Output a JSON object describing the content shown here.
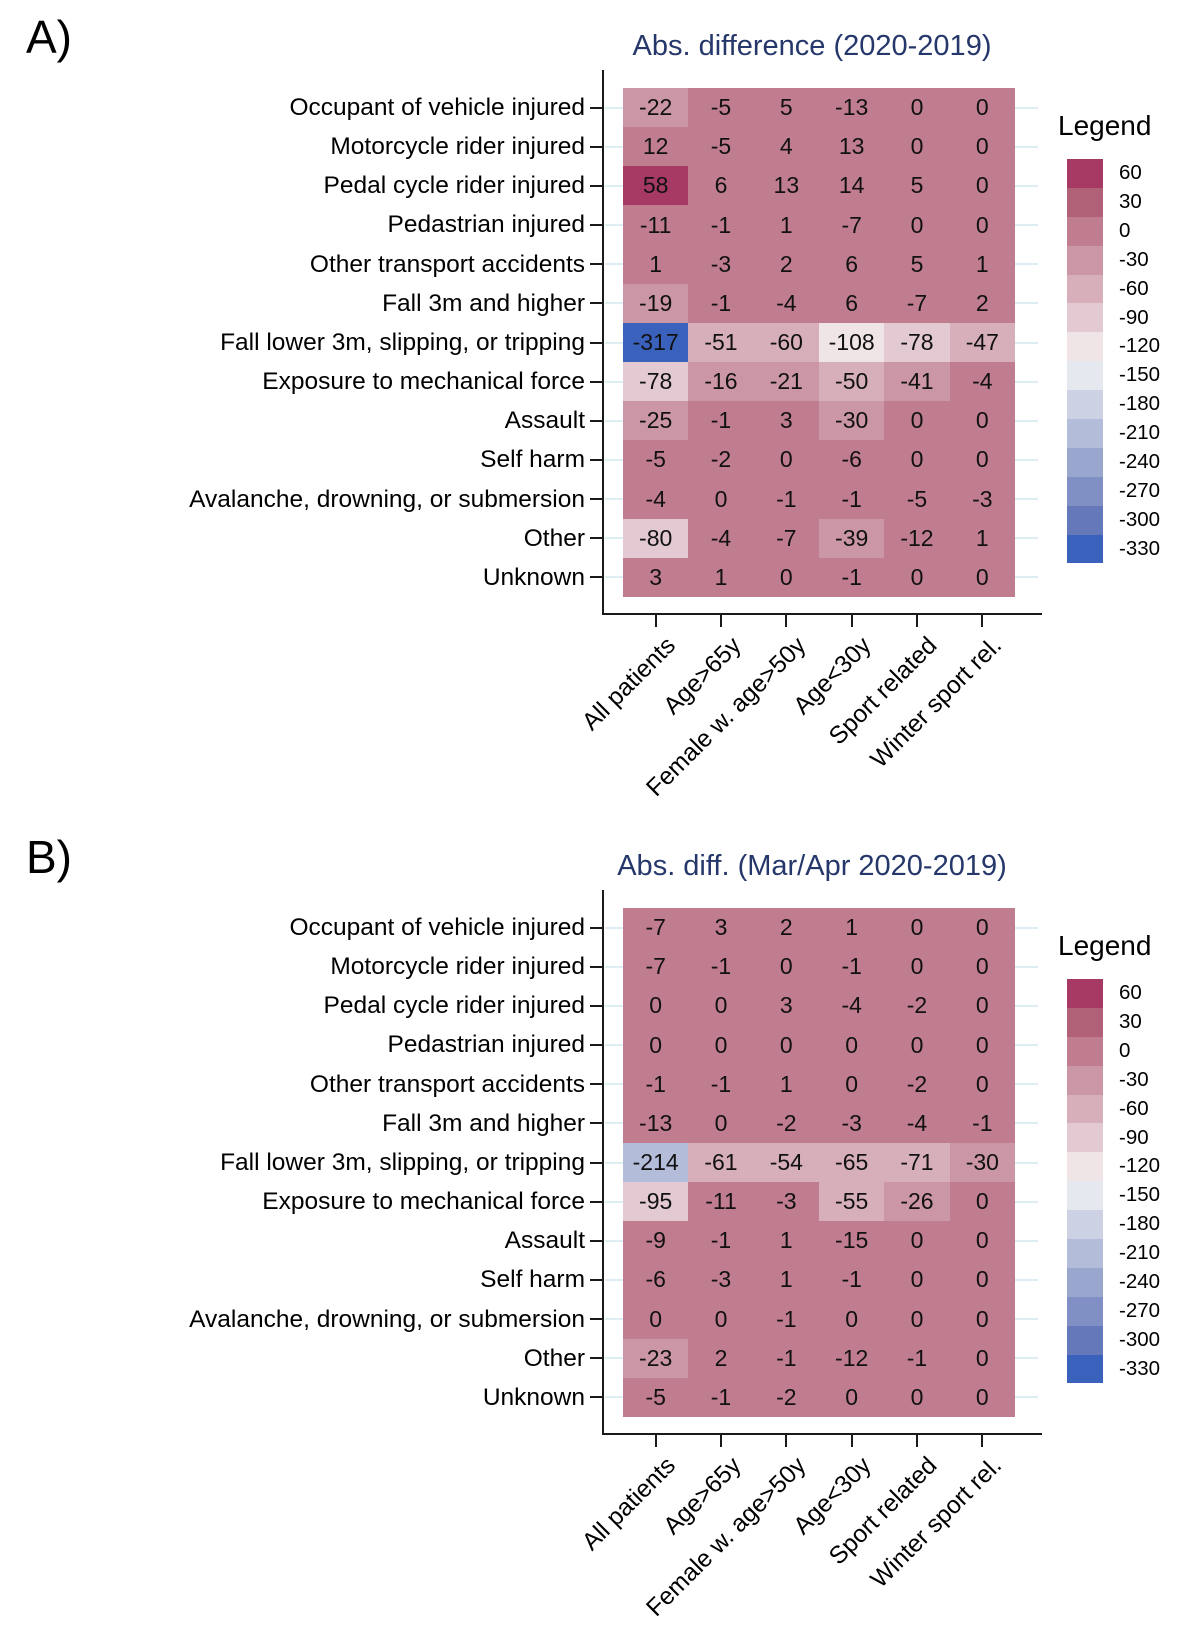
{
  "colors": {
    "title": "#26386b",
    "gridline": "#dceef2",
    "axis": "#1a1a1a",
    "cell_text": "#111111"
  },
  "panels": [
    {
      "letter": "A)"
    },
    {
      "letter": "B)"
    }
  ],
  "legend": {
    "title": "Legend",
    "bins": [
      {
        "label": "60",
        "value": 60,
        "color": "#a63a64"
      },
      {
        "label": "30",
        "value": 30,
        "color": "#b06077"
      },
      {
        "label": "0",
        "value": 0,
        "color": "#c07d90"
      },
      {
        "label": "-30",
        "value": -30,
        "color": "#cb96a5"
      },
      {
        "label": "-60",
        "value": -60,
        "color": "#d7afbb"
      },
      {
        "label": "-90",
        "value": -90,
        "color": "#e3c9d1"
      },
      {
        "label": "-120",
        "value": -120,
        "color": "#efe4e6"
      },
      {
        "label": "-150",
        "value": -150,
        "color": "#e6e8f0"
      },
      {
        "label": "-180",
        "value": -180,
        "color": "#ccd2e4"
      },
      {
        "label": "-210",
        "value": -210,
        "color": "#b3bcd8"
      },
      {
        "label": "-240",
        "value": -240,
        "color": "#99a7cf"
      },
      {
        "label": "-270",
        "value": -270,
        "color": "#8090c4"
      },
      {
        "label": "-300",
        "value": -300,
        "color": "#6579ba"
      },
      {
        "label": "-330",
        "value": -330,
        "color": "#3a62bd"
      }
    ]
  },
  "chart_data": [
    {
      "type": "heatmap",
      "title": "Abs. difference (2020-2019)",
      "rows": [
        "Occupant of vehicle injured",
        "Motorcycle rider injured",
        "Pedal cycle rider injured",
        "Pedastrian injured",
        "Other transport accidents",
        "Fall 3m and higher",
        "Fall lower 3m, slipping, or tripping",
        "Exposure to mechanical force",
        "Assault",
        "Self harm",
        "Avalanche, drowning, or submersion",
        "Other",
        "Unknown"
      ],
      "columns": [
        "All patients",
        "Age>65y",
        "Female w. age>50y",
        "Age<30y",
        "Sport related",
        "Winter sport rel."
      ],
      "values": [
        [
          -22,
          -5,
          5,
          -13,
          0,
          0
        ],
        [
          12,
          -5,
          4,
          13,
          0,
          0
        ],
        [
          58,
          6,
          13,
          14,
          5,
          0
        ],
        [
          -11,
          -1,
          1,
          -7,
          0,
          0
        ],
        [
          1,
          -3,
          2,
          6,
          5,
          1
        ],
        [
          -19,
          -1,
          -4,
          6,
          -7,
          2
        ],
        [
          -317,
          -51,
          -60,
          -108,
          -78,
          -47
        ],
        [
          -78,
          -16,
          -21,
          -50,
          -41,
          -4
        ],
        [
          -25,
          -1,
          3,
          -30,
          0,
          0
        ],
        [
          -5,
          -2,
          0,
          -6,
          0,
          0
        ],
        [
          -4,
          0,
          -1,
          -1,
          -5,
          -3
        ],
        [
          -80,
          -4,
          -7,
          -39,
          -12,
          1
        ],
        [
          3,
          1,
          0,
          -1,
          0,
          0
        ]
      ],
      "color_domain": [
        -330,
        60
      ],
      "color_bin_size": 30,
      "legend_position": "right",
      "grid": true
    },
    {
      "type": "heatmap",
      "title": "Abs. diff. (Mar/Apr 2020-2019)",
      "rows": [
        "Occupant of vehicle injured",
        "Motorcycle rider injured",
        "Pedal cycle rider injured",
        "Pedastrian injured",
        "Other transport accidents",
        "Fall 3m and higher",
        "Fall lower 3m, slipping, or tripping",
        "Exposure to mechanical force",
        "Assault",
        "Self harm",
        "Avalanche, drowning, or submersion",
        "Other",
        "Unknown"
      ],
      "columns": [
        "All patients",
        "Age>65y",
        "Female w. age>50y",
        "Age<30y",
        "Sport related",
        "Winter sport rel."
      ],
      "values": [
        [
          -7,
          3,
          2,
          1,
          0,
          0
        ],
        [
          -7,
          -1,
          0,
          -1,
          0,
          0
        ],
        [
          0,
          0,
          3,
          -4,
          -2,
          0
        ],
        [
          0,
          0,
          0,
          0,
          0,
          0
        ],
        [
          -1,
          -1,
          1,
          0,
          -2,
          0
        ],
        [
          -13,
          0,
          -2,
          -3,
          -4,
          -1
        ],
        [
          -214,
          -61,
          -54,
          -65,
          -71,
          -30
        ],
        [
          -95,
          -11,
          -3,
          -55,
          -26,
          0
        ],
        [
          -9,
          -1,
          1,
          -15,
          0,
          0
        ],
        [
          -6,
          -3,
          1,
          -1,
          0,
          0
        ],
        [
          0,
          0,
          -1,
          0,
          0,
          0
        ],
        [
          -23,
          2,
          -1,
          -12,
          -1,
          0
        ],
        [
          -5,
          -1,
          -2,
          0,
          0,
          0
        ]
      ],
      "color_domain": [
        -330,
        60
      ],
      "color_bin_size": 30,
      "legend_position": "right",
      "grid": true
    }
  ]
}
